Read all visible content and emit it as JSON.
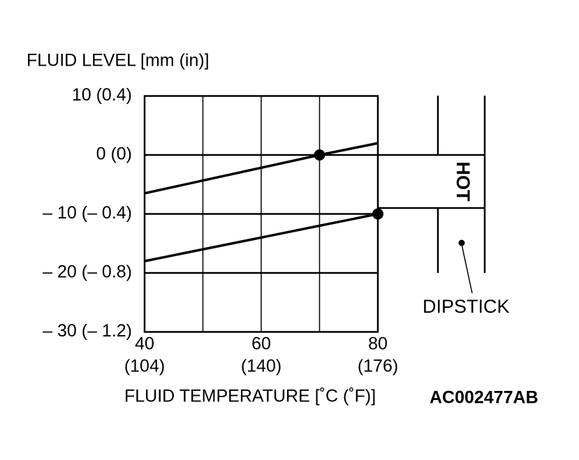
{
  "chart_data": {
    "type": "line",
    "title": "FLUID LEVEL [mm (in)]",
    "x_label": "FLUID TEMPERATURE [˚C (˚F)]",
    "code": "AC002477AB",
    "x": [
      40,
      70,
      80
    ],
    "series": [
      {
        "color": "#000000",
        "values": [
          -6.5,
          0,
          2
        ]
      },
      {
        "color": "#000000",
        "values": [
          -18,
          -12,
          -10
        ]
      }
    ],
    "points": {
      "x": [
        70,
        80
      ],
      "y": [
        0,
        -10
      ]
    },
    "xlim": [
      40,
      80
    ],
    "xticks": [
      {
        "value": 40,
        "label": "40"
      },
      {
        "value": 60,
        "label": "60"
      },
      {
        "value": 80,
        "label": "80"
      }
    ],
    "xticks_f": [
      "(104)",
      "(140)",
      "(176)"
    ],
    "xgrid": [
      50,
      70
    ],
    "ylim": [
      -30,
      10
    ],
    "yticks": [
      {
        "value": 10,
        "label": "10 (0.4)"
      },
      {
        "value": 0,
        "label": "0 (0)"
      },
      {
        "value": -10,
        "label": "– 10 (– 0.4)"
      },
      {
        "value": -20,
        "label": "– 20 (– 0.8)"
      },
      {
        "value": -30,
        "label": "– 30 (– 1.2)"
      }
    ],
    "grid": true,
    "dipstick": {
      "mark": "HOT",
      "label": "DIPSTICK"
    }
  }
}
